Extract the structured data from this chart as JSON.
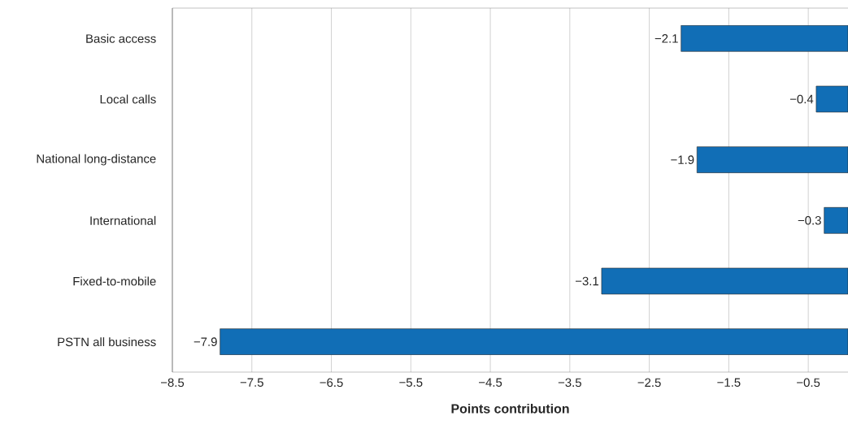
{
  "chart_data": {
    "type": "bar",
    "orientation": "horizontal",
    "xlabel": "Points contribution",
    "categories": [
      "Basic access",
      "Local calls",
      "National long-distance",
      "International",
      "Fixed-to-mobile",
      "PSTN all business"
    ],
    "values": [
      -2.1,
      -0.4,
      -1.9,
      -0.3,
      -3.1,
      -7.9
    ],
    "value_labels": [
      "−2.1",
      "−0.4",
      "−1.9",
      "−0.3",
      "−3.1",
      "−7.9"
    ],
    "color": "#116eb6",
    "xlim": [
      -8.5,
      0
    ],
    "xticks": [
      {
        "value": -8.5,
        "label": "−8.5"
      },
      {
        "value": -7.5,
        "label": "−7.5"
      },
      {
        "value": -6.5,
        "label": "−6.5"
      },
      {
        "value": -5.5,
        "label": "−5.5"
      },
      {
        "value": -4.5,
        "label": "−4.5"
      },
      {
        "value": -3.5,
        "label": "−3.5"
      },
      {
        "value": -2.5,
        "label": "−2.5"
      },
      {
        "value": -1.5,
        "label": "−1.5"
      },
      {
        "value": -0.5,
        "label": "−0.5"
      }
    ],
    "grid": "x"
  }
}
